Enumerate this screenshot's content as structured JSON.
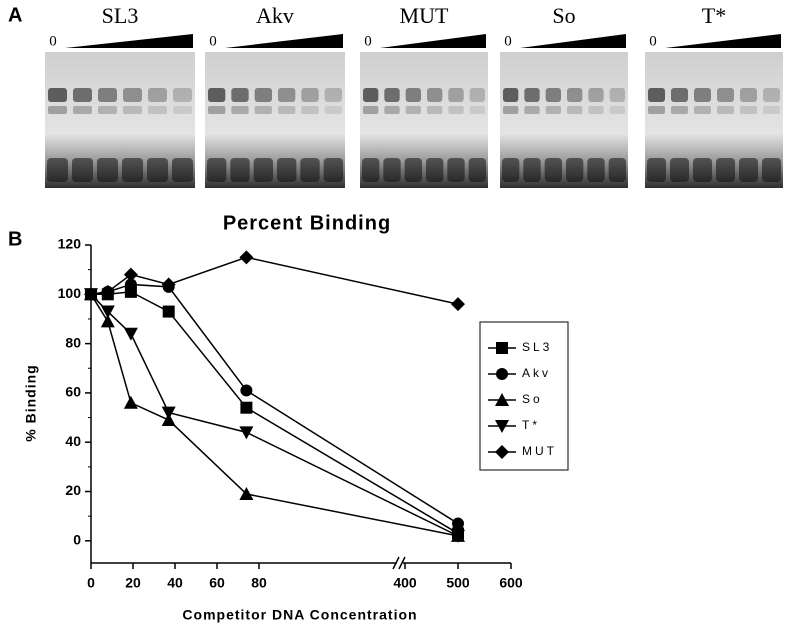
{
  "gel_panel": {
    "label": "A",
    "lanes": [
      {
        "name": "SL3",
        "start": "0"
      },
      {
        "name": "Akv",
        "start": "0"
      },
      {
        "name": "MUT",
        "start": "0"
      },
      {
        "name": "So",
        "start": "0"
      },
      {
        "name": "T*",
        "start": "0"
      }
    ]
  },
  "chart_data": {
    "type": "line",
    "panel_label": "B",
    "title": "Percent Binding",
    "x_label": "Competitor DNA Concentration",
    "y_label": "% Binding",
    "x": [
      0,
      8,
      19,
      37,
      74,
      500
    ],
    "series": [
      {
        "name": "SL3",
        "color": "#000000",
        "marker": "square",
        "values": [
          100,
          100,
          101,
          93,
          54,
          3
        ]
      },
      {
        "name": "Akv",
        "color": "#000000",
        "marker": "circle",
        "values": [
          100,
          101,
          104,
          103,
          61,
          7
        ]
      },
      {
        "name": "So",
        "color": "#000000",
        "marker": "triangle-up",
        "values": [
          100,
          89,
          56,
          49,
          19,
          2
        ]
      },
      {
        "name": "T*",
        "color": "#000000",
        "marker": "triangle-down",
        "values": [
          100,
          93,
          84,
          52,
          44,
          2
        ]
      },
      {
        "name": "MUT",
        "color": "#000000",
        "marker": "diamond",
        "values": [
          100,
          101,
          108,
          104,
          115,
          96
        ]
      }
    ],
    "xlim": [
      0,
      600
    ],
    "xbreak": [
      100,
      400
    ],
    "xticks": [
      0,
      20,
      40,
      60,
      80,
      400,
      500,
      600
    ],
    "ylim": [
      -9,
      120
    ],
    "yticks": [
      0,
      20,
      40,
      60,
      80,
      100,
      120
    ],
    "grid": false,
    "legend": "right"
  }
}
